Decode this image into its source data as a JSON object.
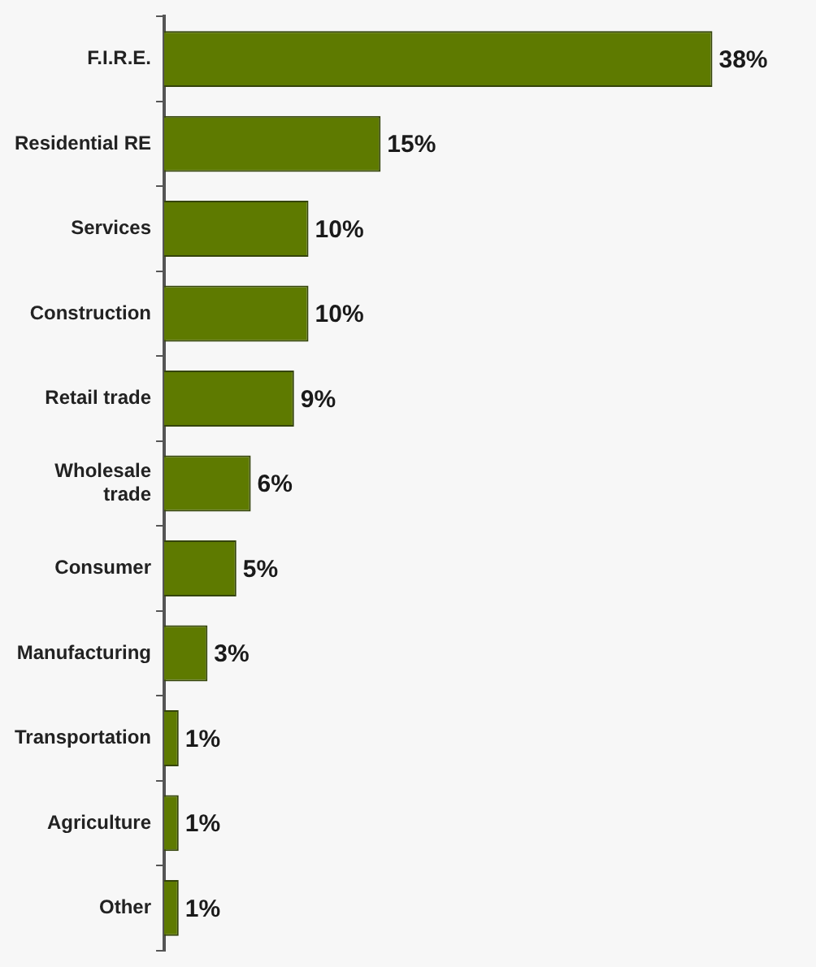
{
  "chart_data": {
    "type": "bar",
    "orientation": "horizontal",
    "categories": [
      "F.I.R.E.",
      "Residential RE",
      "Services",
      "Construction",
      "Retail trade",
      "Wholesale trade",
      "Consumer",
      "Manufacturing",
      "Transportation",
      "Agriculture",
      "Other"
    ],
    "values": [
      38,
      15,
      10,
      10,
      9,
      6,
      5,
      3,
      1,
      1,
      1
    ],
    "value_labels": [
      "38%",
      "15%",
      "10%",
      "10%",
      "9%",
      "6%",
      "5%",
      "3%",
      "1%",
      "1%",
      "1%"
    ],
    "color": "#5e7a00",
    "grid": false,
    "legend": false
  }
}
